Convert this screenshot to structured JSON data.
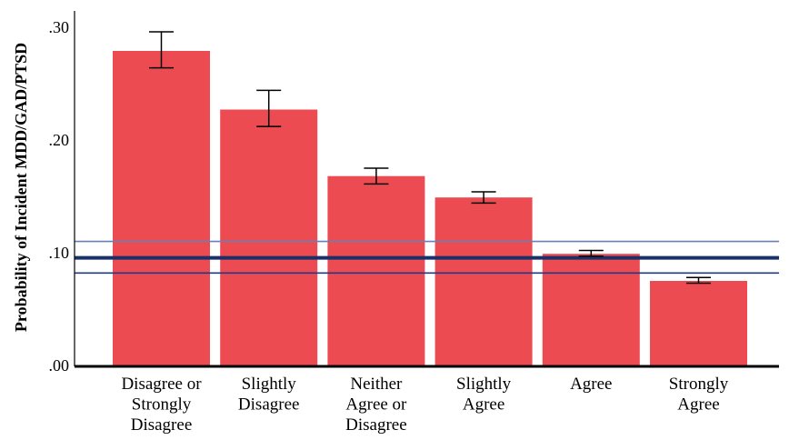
{
  "chart_data": {
    "type": "bar",
    "title": "",
    "xlabel": "",
    "ylabel": "Probability of Incident MDD/GAD/PTSD",
    "ylim": [
      0,
      0.3
    ],
    "yticks": [
      {
        "value": 0.0,
        "label": ".00"
      },
      {
        "value": 0.1,
        "label": ".10"
      },
      {
        "value": 0.2,
        "label": ".20"
      },
      {
        "value": 0.3,
        "label": ".30"
      }
    ],
    "categories": [
      [
        "Disagree or",
        "Strongly",
        "Disagree"
      ],
      [
        "Slightly",
        "Disagree"
      ],
      [
        "Neither",
        "Agree or",
        "Disagree"
      ],
      [
        "Slightly",
        "Agree"
      ],
      [
        "Agree"
      ],
      [
        "Strongly",
        "Agree"
      ]
    ],
    "values": [
      0.279,
      0.227,
      0.168,
      0.149,
      0.099,
      0.075
    ],
    "error_low": [
      0.264,
      0.212,
      0.161,
      0.144,
      0.097,
      0.073
    ],
    "error_high": [
      0.296,
      0.244,
      0.175,
      0.154,
      0.102,
      0.078
    ],
    "reference_lines": [
      {
        "value": 0.0955,
        "style": "thick"
      },
      {
        "value": 0.11,
        "style": "thin"
      },
      {
        "value": 0.082,
        "style": "thin"
      }
    ],
    "grid": false,
    "legend": "none"
  },
  "colors": {
    "bar": "#ec4b52",
    "reference_thick": "#1a3068",
    "reference_thin_upper": "#6a7fb4",
    "reference_thin_lower": "#1f3a8a",
    "axis": "#000000"
  }
}
